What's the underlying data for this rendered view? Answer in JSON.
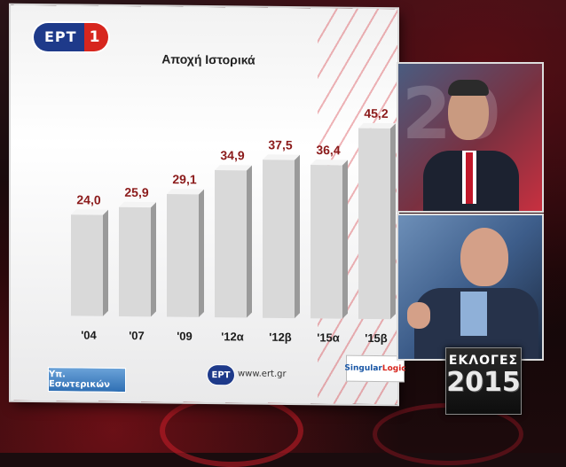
{
  "channel_logo": {
    "text": "ΕΡΤ",
    "number": "1"
  },
  "chart_data": {
    "type": "bar",
    "title": "Αποχή Ιστορικά",
    "categories": [
      "'04",
      "'07",
      "'09",
      "'12α",
      "'12β",
      "'15α",
      "'15β"
    ],
    "value_labels": [
      "24,0",
      "25,9",
      "29,1",
      "34,9",
      "37,5",
      "36,4",
      "45,2"
    ],
    "values": [
      24.0,
      25.9,
      29.1,
      34.9,
      37.5,
      36.4,
      45.2
    ],
    "ylim": [
      0,
      50
    ],
    "grid": false,
    "bar_color": "#d9d9d9",
    "label_color": "#8b1a1a"
  },
  "footer": {
    "source": "Υπ. Εσωτερικών",
    "ert_small": "ΕΡΤ",
    "url": "www.ert.gr",
    "partner_a": "Singular",
    "partner_b": "Logic"
  },
  "elections_badge": {
    "label": "ΕΚΛΟΓΕΣ",
    "year": "2015"
  },
  "colors": {
    "ert_blue": "#1e3a8a",
    "ert_red": "#d7261e",
    "accent": "#c8202c"
  }
}
